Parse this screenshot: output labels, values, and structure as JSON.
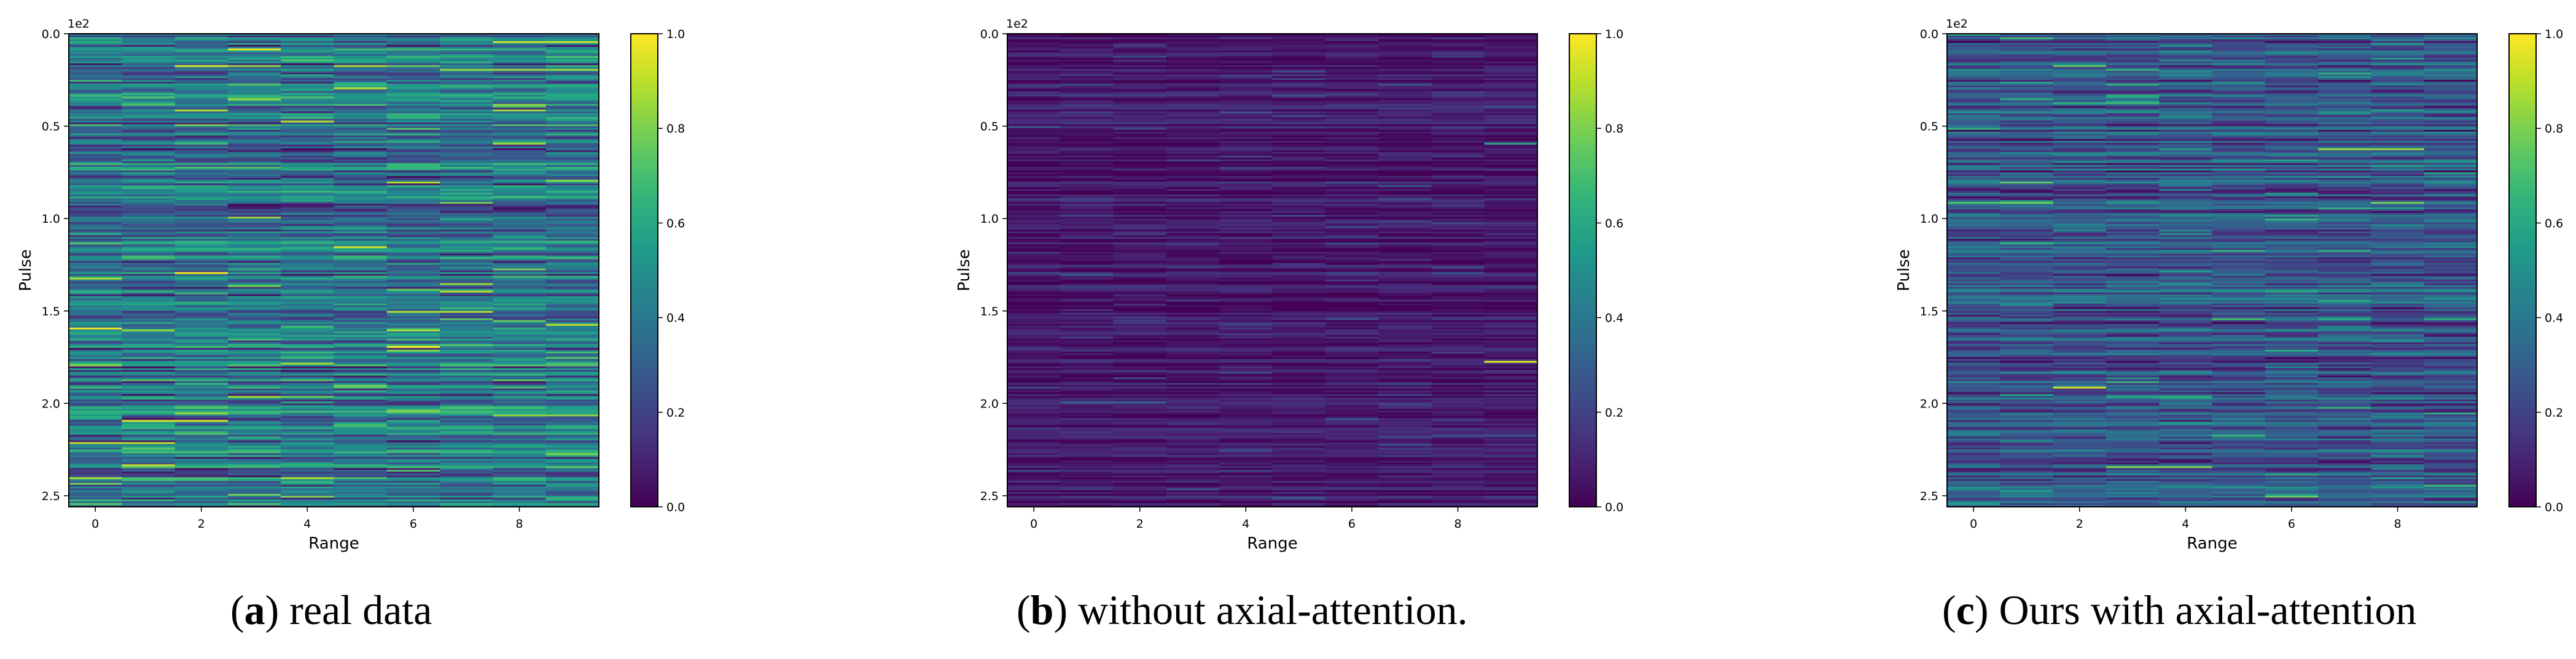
{
  "chart_data": [
    {
      "type": "heatmap",
      "id": "a",
      "caption_letter": "a",
      "caption_text": ") real data",
      "xlabel": "Range",
      "ylabel": "Pulse",
      "y_scale_label": "1e2",
      "x_ticks": [
        "0",
        "2",
        "4",
        "6",
        "8"
      ],
      "x_tick_values": [
        0,
        2,
        4,
        6,
        8
      ],
      "y_ticks": [
        "0.0",
        "0.5",
        "1.0",
        "1.5",
        "2.0",
        "2.5"
      ],
      "y_tick_values": [
        0,
        0.5,
        1.0,
        1.5,
        2.0,
        2.5
      ],
      "xlim": [
        -0.5,
        9.5
      ],
      "ylim": [
        0,
        2.56
      ],
      "n_rows": 256,
      "n_cols": 10,
      "colorbar_ticks": [
        "0.0",
        "0.2",
        "0.4",
        "0.6",
        "0.8",
        "1.0"
      ],
      "colorbar_range": [
        0,
        1
      ],
      "value_mean": 0.38,
      "value_spread": 0.3,
      "seed": 11,
      "highlights": [
        {
          "row": 4,
          "cols": [
            8,
            9
          ],
          "value": 0.92
        },
        {
          "row": 19,
          "cols": [
            7,
            9
          ],
          "value": 0.85
        },
        {
          "row": 209,
          "cols": [
            1,
            2
          ],
          "value": 0.95
        },
        {
          "row": 221,
          "cols": [
            0,
            1
          ],
          "value": 0.9
        },
        {
          "row": 150,
          "cols": [
            6,
            7
          ],
          "value": 0.88
        },
        {
          "row": 157,
          "cols": [
            9,
            9
          ],
          "value": 0.9
        }
      ]
    },
    {
      "type": "heatmap",
      "id": "b",
      "caption_letter": "b",
      "caption_text": ") without axial-attention.",
      "xlabel": "Range",
      "ylabel": "Pulse",
      "y_scale_label": "1e2",
      "x_ticks": [
        "0",
        "2",
        "4",
        "6",
        "8"
      ],
      "x_tick_values": [
        0,
        2,
        4,
        6,
        8
      ],
      "y_ticks": [
        "0.0",
        "0.5",
        "1.0",
        "1.5",
        "2.0",
        "2.5"
      ],
      "y_tick_values": [
        0,
        0.5,
        1.0,
        1.5,
        2.0,
        2.5
      ],
      "xlim": [
        -0.5,
        9.5
      ],
      "ylim": [
        0,
        2.56
      ],
      "n_rows": 256,
      "n_cols": 10,
      "colorbar_ticks": [
        "0.0",
        "0.2",
        "0.4",
        "0.6",
        "0.8",
        "1.0"
      ],
      "colorbar_range": [
        0,
        1
      ],
      "value_mean": 0.07,
      "value_spread": 0.1,
      "seed": 23,
      "highlights": [
        {
          "row": 177,
          "cols": [
            9,
            9
          ],
          "value": 0.95
        },
        {
          "row": 59,
          "cols": [
            9,
            9
          ],
          "value": 0.6
        },
        {
          "row": 199,
          "cols": [
            1,
            2
          ],
          "value": 0.35
        }
      ]
    },
    {
      "type": "heatmap",
      "id": "c",
      "caption_letter": "c",
      "caption_text": ") Ours with axial-attention",
      "xlabel": "Range",
      "ylabel": "Pulse",
      "y_scale_label": "1e2",
      "x_ticks": [
        "0",
        "2",
        "4",
        "6",
        "8"
      ],
      "x_tick_values": [
        0,
        2,
        4,
        6,
        8
      ],
      "y_ticks": [
        "0.0",
        "0.5",
        "1.0",
        "1.5",
        "2.0",
        "2.5"
      ],
      "y_tick_values": [
        0,
        0.5,
        1.0,
        1.5,
        2.0,
        2.5
      ],
      "xlim": [
        -0.5,
        9.5
      ],
      "ylim": [
        0,
        2.56
      ],
      "n_rows": 256,
      "n_cols": 10,
      "colorbar_ticks": [
        "0.0",
        "0.2",
        "0.4",
        "0.6",
        "0.8",
        "1.0"
      ],
      "colorbar_range": [
        0,
        1
      ],
      "value_mean": 0.27,
      "value_spread": 0.22,
      "seed": 37,
      "highlights": [
        {
          "row": 191,
          "cols": [
            2,
            2
          ],
          "value": 0.95
        },
        {
          "row": 62,
          "cols": [
            7,
            8
          ],
          "value": 0.85
        },
        {
          "row": 234,
          "cols": [
            3,
            4
          ],
          "value": 0.8
        },
        {
          "row": 17,
          "cols": [
            2,
            2
          ],
          "value": 0.75
        }
      ]
    }
  ]
}
